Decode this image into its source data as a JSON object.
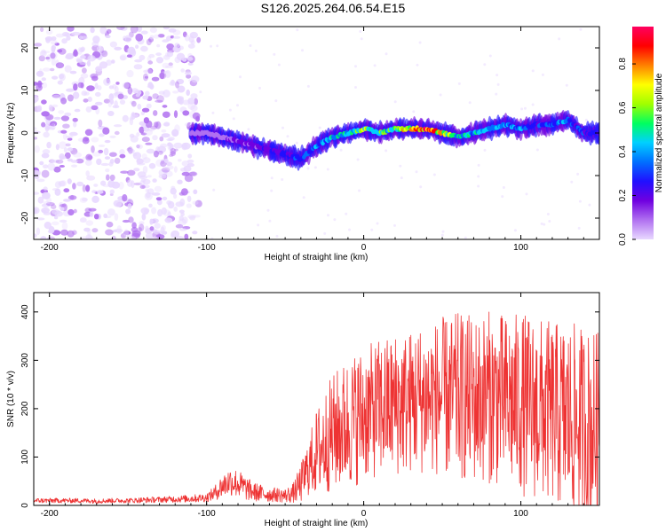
{
  "title": "S126.2025.264.06.54.E15",
  "chart_data": [
    {
      "type": "heatmap",
      "xlabel": "Height of straight line (km)",
      "ylabel": "Frequency (Hz)",
      "xlim": [
        -210,
        150
      ],
      "ylim": [
        -25,
        25
      ],
      "xticks": [
        -200,
        -100,
        0,
        100
      ],
      "yticks": [
        -20,
        -10,
        0,
        10,
        20
      ],
      "colorbar": {
        "label": "Normalized spectral amplitude",
        "range": [
          0.0,
          0.97
        ],
        "ticks": [
          0.0,
          0.2,
          0.4,
          0.6,
          0.8
        ],
        "tick_labels": [
          "0.0",
          "0.2",
          "0.4",
          "0.6",
          "0.8"
        ],
        "colors": [
          "#e8d8ff",
          "#b070f0",
          "#7000e0",
          "#2010ff",
          "#0070ff",
          "#00d0ff",
          "#00ff60",
          "#a0ff00",
          "#ffff00",
          "#ff8000",
          "#ff0000",
          "#ff0060"
        ]
      },
      "ridge": {
        "x": [
          -110,
          -100,
          -90,
          -80,
          -70,
          -60,
          -50,
          -40,
          -30,
          -20,
          -10,
          0,
          10,
          20,
          30,
          40,
          50,
          60,
          70,
          80,
          90,
          100,
          110,
          120,
          130,
          140,
          150
        ],
        "frequency": [
          0,
          0,
          -1,
          -2,
          -3,
          -4,
          -5,
          -6,
          -3,
          -1,
          0,
          1,
          0,
          1,
          1,
          1,
          0,
          -1,
          0,
          1,
          2,
          1,
          2,
          2,
          3,
          0,
          0
        ],
        "amplitude": [
          0.1,
          0.15,
          0.15,
          0.2,
          0.2,
          0.25,
          0.3,
          0.35,
          0.4,
          0.45,
          0.5,
          0.6,
          0.55,
          0.6,
          0.8,
          0.85,
          0.7,
          0.5,
          0.45,
          0.4,
          0.45,
          0.4,
          0.35,
          0.35,
          0.4,
          0.3,
          0.25
        ]
      },
      "noise_region_x": [
        -210,
        -105
      ]
    },
    {
      "type": "line",
      "xlabel": "Height of straight line (km)",
      "ylabel": "SNR (10 * v/v)",
      "xlim": [
        -210,
        150
      ],
      "ylim": [
        0,
        440
      ],
      "xticks": [
        -200,
        -100,
        0,
        100
      ],
      "yticks": [
        0,
        100,
        200,
        300,
        400
      ],
      "color": "#ee3333",
      "series": [
        {
          "name": "SNR",
          "x": [
            -210,
            -200,
            -190,
            -180,
            -170,
            -160,
            -150,
            -140,
            -130,
            -120,
            -110,
            -100,
            -95,
            -90,
            -85,
            -80,
            -75,
            -70,
            -65,
            -60,
            -55,
            -50,
            -45,
            -40,
            -35,
            -30,
            -25,
            -20,
            -15,
            -10,
            -5,
            0,
            5,
            10,
            15,
            20,
            25,
            30,
            35,
            40,
            45,
            50,
            55,
            60,
            65,
            70,
            75,
            80,
            85,
            90,
            95,
            100,
            105,
            110,
            115,
            120,
            125,
            130,
            135,
            140,
            145,
            150
          ],
          "values": [
            10,
            10,
            10,
            10,
            9,
            10,
            10,
            11,
            12,
            13,
            14,
            16,
            25,
            40,
            50,
            45,
            35,
            28,
            25,
            22,
            22,
            20,
            25,
            45,
            80,
            110,
            130,
            150,
            160,
            170,
            180,
            190,
            195,
            200,
            205,
            210,
            212,
            215,
            220,
            220,
            222,
            225,
            220,
            225,
            222,
            220,
            222,
            225,
            220,
            215,
            212,
            210,
            205,
            200,
            195,
            190,
            185,
            180,
            175,
            170,
            165,
            160
          ],
          "spread": [
            5,
            5,
            5,
            5,
            5,
            5,
            5,
            6,
            6,
            7,
            8,
            9,
            15,
            25,
            30,
            30,
            25,
            20,
            18,
            15,
            15,
            15,
            20,
            40,
            60,
            90,
            110,
            120,
            130,
            135,
            140,
            140,
            140,
            145,
            145,
            150,
            150,
            150,
            155,
            155,
            160,
            165,
            170,
            175,
            175,
            175,
            175,
            180,
            180,
            180,
            185,
            190,
            190,
            190,
            190,
            190,
            195,
            200,
            200,
            200,
            200,
            200
          ]
        }
      ]
    }
  ]
}
